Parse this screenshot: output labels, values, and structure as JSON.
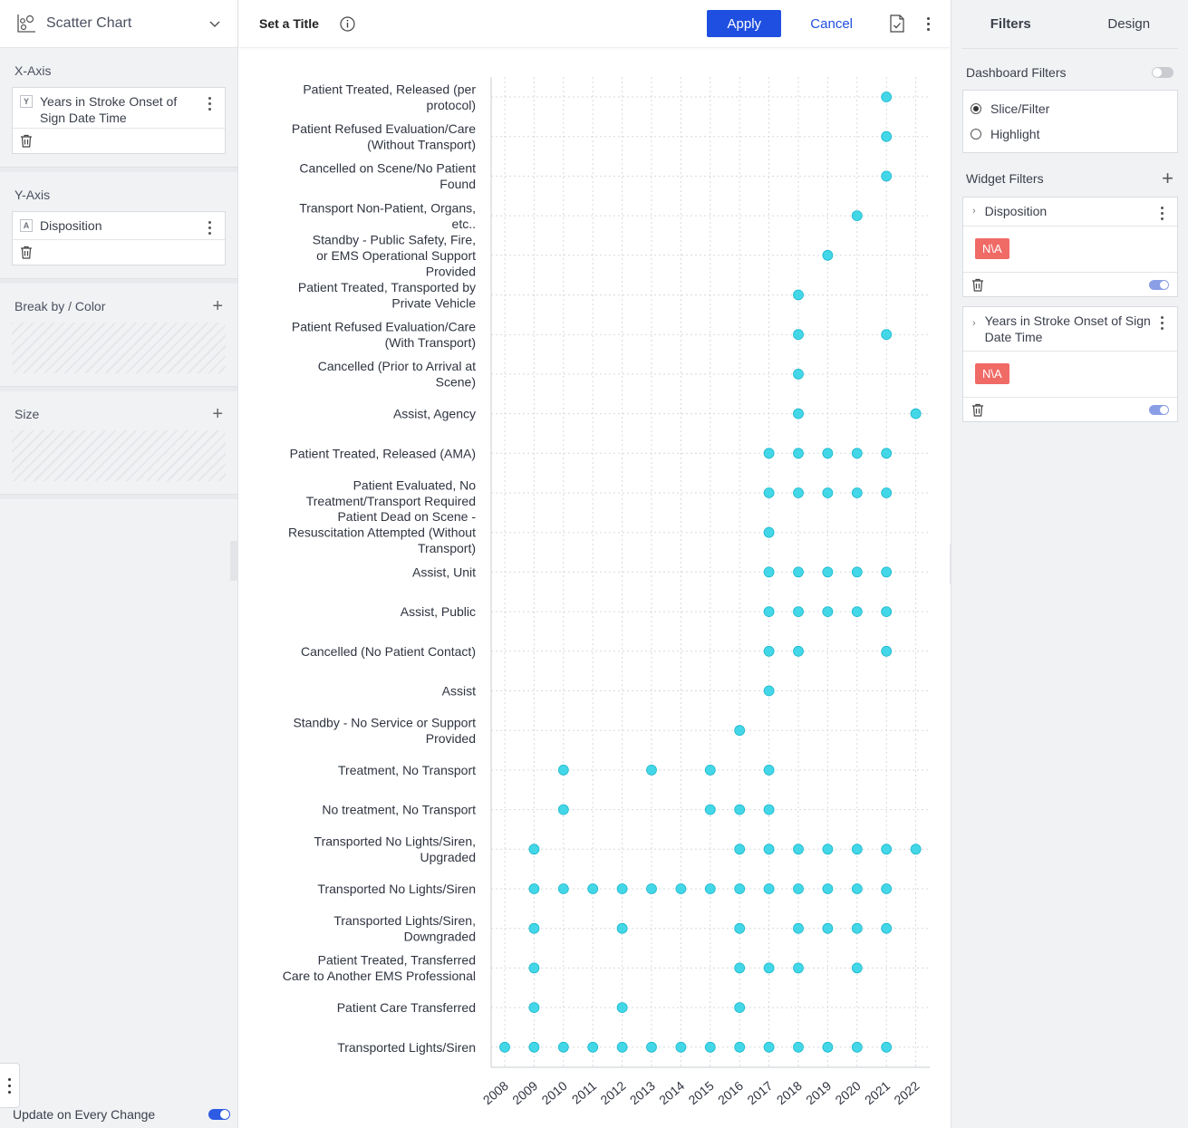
{
  "left_panel": {
    "chart_type": "Scatter Chart",
    "x_axis": {
      "title": "X-Axis",
      "badge": "Y",
      "field": "Years in Stroke Onset of Sign Date Time"
    },
    "y_axis": {
      "title": "Y-Axis",
      "badge": "A",
      "field": "Disposition"
    },
    "break_by": {
      "title": "Break by / Color"
    },
    "size": {
      "title": "Size"
    },
    "update_label": "Update on Every Change"
  },
  "center": {
    "title": "Set a Title",
    "apply_label": "Apply",
    "cancel_label": "Cancel"
  },
  "right_panel": {
    "tabs": [
      "Filters",
      "Design"
    ],
    "dashboard_filters": "Dashboard Filters",
    "radio_options": [
      "Slice/Filter",
      "Highlight"
    ],
    "widget_filters": "Widget Filters",
    "filters": [
      {
        "name": "Disposition",
        "value": "N\\A"
      },
      {
        "name": "Years in Stroke Onset of Sign Date Time",
        "value": "N\\A"
      }
    ]
  },
  "colors": {
    "accent": "#1f4fe0",
    "point": "#2fd3e6",
    "chip": "#f06a66"
  },
  "chart_data": {
    "type": "scatter",
    "x": [
      "2008",
      "2009",
      "2010",
      "2011",
      "2012",
      "2013",
      "2014",
      "2015",
      "2016",
      "2017",
      "2018",
      "2019",
      "2020",
      "2021",
      "2022"
    ],
    "categories": [
      "Patient Treated, Released (per protocol)",
      "Patient Refused Evaluation/Care (Without Transport)",
      "Cancelled on Scene/No Patient Found",
      "Transport Non-Patient, Organs, etc..",
      "Standby - Public Safety, Fire, or EMS Operational Support Provided",
      "Patient Treated, Transported by Private Vehicle",
      "Patient Refused Evaluation/Care (With Transport)",
      "Cancelled (Prior to Arrival at Scene)",
      "Assist, Agency",
      "Patient Treated, Released (AMA)",
      "Patient Evaluated, No Treatment/Transport Required",
      "Patient Dead on Scene - Resuscitation Attempted (Without Transport)",
      "Assist, Unit",
      "Assist, Public",
      "Cancelled (No Patient Contact)",
      "Assist",
      "Standby - No Service or Support Provided",
      "Treatment, No Transport",
      "No treatment, No Transport",
      "Transported No Lights/Siren, Upgraded",
      "Transported No Lights/Siren",
      "Transported Lights/Siren, Downgraded",
      "Patient Treated, Transferred Care to Another EMS Professional",
      "Patient Care Transferred",
      "Transported Lights/Siren"
    ],
    "points": [
      [
        "Patient Treated, Released (per protocol)",
        [
          "2021"
        ]
      ],
      [
        "Patient Refused Evaluation/Care (Without Transport)",
        [
          "2021"
        ]
      ],
      [
        "Cancelled on Scene/No Patient Found",
        [
          "2021"
        ]
      ],
      [
        "Transport Non-Patient, Organs, etc..",
        [
          "2020"
        ]
      ],
      [
        "Standby - Public Safety, Fire, or EMS Operational Support Provided",
        [
          "2019"
        ]
      ],
      [
        "Patient Treated, Transported by Private Vehicle",
        [
          "2018"
        ]
      ],
      [
        "Patient Refused Evaluation/Care (With Transport)",
        [
          "2018",
          "2021"
        ]
      ],
      [
        "Cancelled (Prior to Arrival at Scene)",
        [
          "2018"
        ]
      ],
      [
        "Assist, Agency",
        [
          "2018",
          "2022"
        ]
      ],
      [
        "Patient Treated, Released (AMA)",
        [
          "2017",
          "2018",
          "2019",
          "2020",
          "2021"
        ]
      ],
      [
        "Patient Evaluated, No Treatment/Transport Required",
        [
          "2017",
          "2018",
          "2019",
          "2020",
          "2021"
        ]
      ],
      [
        "Patient Dead on Scene - Resuscitation Attempted (Without Transport)",
        [
          "2017"
        ]
      ],
      [
        "Assist, Unit",
        [
          "2017",
          "2018",
          "2019",
          "2020",
          "2021"
        ]
      ],
      [
        "Assist, Public",
        [
          "2017",
          "2018",
          "2019",
          "2020",
          "2021"
        ]
      ],
      [
        "Cancelled (No Patient Contact)",
        [
          "2017",
          "2018",
          "2021"
        ]
      ],
      [
        "Assist",
        [
          "2017"
        ]
      ],
      [
        "Standby - No Service or Support Provided",
        [
          "2016"
        ]
      ],
      [
        "Treatment, No Transport",
        [
          "2010",
          "2013",
          "2015",
          "2017"
        ]
      ],
      [
        "No treatment, No Transport",
        [
          "2010",
          "2015",
          "2016",
          "2017"
        ]
      ],
      [
        "Transported No Lights/Siren, Upgraded",
        [
          "2009",
          "2016",
          "2017",
          "2018",
          "2019",
          "2020",
          "2021",
          "2022"
        ]
      ],
      [
        "Transported No Lights/Siren",
        [
          "2009",
          "2010",
          "2011",
          "2012",
          "2013",
          "2014",
          "2015",
          "2016",
          "2017",
          "2018",
          "2019",
          "2020",
          "2021"
        ]
      ],
      [
        "Transported Lights/Siren, Downgraded",
        [
          "2009",
          "2012",
          "2016",
          "2018",
          "2019",
          "2020",
          "2021"
        ]
      ],
      [
        "Patient Treated, Transferred Care to Another EMS Professional",
        [
          "2009",
          "2016",
          "2017",
          "2018",
          "2020"
        ]
      ],
      [
        "Patient Care Transferred",
        [
          "2009",
          "2012",
          "2016"
        ]
      ],
      [
        "Transported Lights/Siren",
        [
          "2008",
          "2009",
          "2010",
          "2011",
          "2012",
          "2013",
          "2014",
          "2015",
          "2016",
          "2017",
          "2018",
          "2019",
          "2020",
          "2021"
        ]
      ]
    ],
    "grid": true
  }
}
